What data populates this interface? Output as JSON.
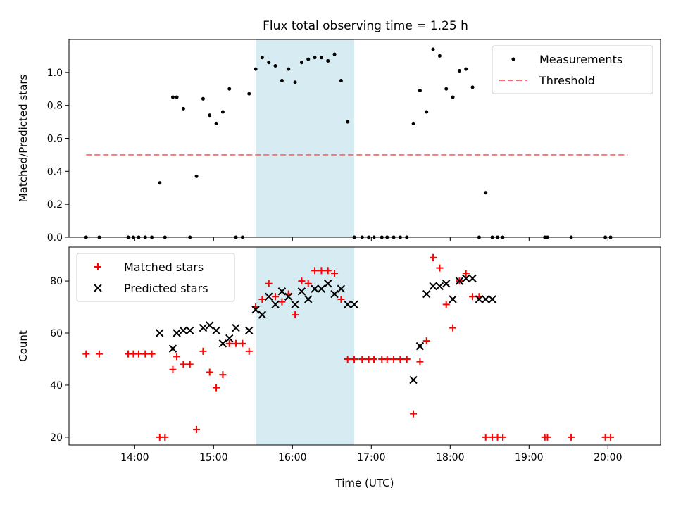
{
  "figure": {
    "title": "Flux total observing time = 1.25 h"
  },
  "colors": {
    "highlight_fill": "#add8e6",
    "threshold": "#ff6666",
    "measurement": "#000000",
    "matched": "#ff0000",
    "predicted": "#000000"
  },
  "chart_data": [
    {
      "type": "scatter",
      "ylabel": "Matched/Predicted stars",
      "xlim": [
        "13:10",
        "20:40"
      ],
      "ylim": [
        0,
        1.2
      ],
      "yticks": [
        0.0,
        0.2,
        0.4,
        0.6,
        0.8,
        1.0
      ],
      "yticklabels": [
        "0.0",
        "0.2",
        "0.4",
        "0.6",
        "0.8",
        "1.0"
      ],
      "grid": false,
      "legend_position": "top-right",
      "highlight_span": [
        "15:32",
        "16:47"
      ],
      "series": [
        {
          "name": "Measurements",
          "marker": "dot",
          "x": [
            "13:23",
            "13:33",
            "13:55",
            "13:59",
            "14:03",
            "14:08",
            "14:13",
            "14:19",
            "14:23",
            "14:29",
            "14:32",
            "14:37",
            "14:42",
            "14:47",
            "14:52",
            "14:57",
            "15:02",
            "15:07",
            "15:12",
            "15:17",
            "15:22",
            "15:27",
            "15:32",
            "15:37",
            "15:42",
            "15:47",
            "15:52",
            "15:57",
            "16:02",
            "16:07",
            "16:12",
            "16:17",
            "16:22",
            "16:27",
            "16:32",
            "16:37",
            "16:42",
            "16:47",
            "16:53",
            "16:58",
            "17:02",
            "17:08",
            "17:12",
            "17:17",
            "17:22",
            "17:27",
            "17:32",
            "17:37",
            "17:42",
            "17:47",
            "17:52",
            "17:57",
            "18:02",
            "18:07",
            "18:12",
            "18:17",
            "18:22",
            "18:27",
            "18:32",
            "18:36",
            "18:40",
            "19:12",
            "19:14",
            "19:32",
            "19:58",
            "20:02"
          ],
          "y": [
            0,
            0,
            0,
            0,
            0,
            0,
            0,
            0.33,
            0,
            0.85,
            0.85,
            0.78,
            0,
            0.37,
            0.84,
            0.74,
            0.69,
            0.76,
            0.9,
            0,
            0,
            0.87,
            1.02,
            1.09,
            1.06,
            1.04,
            0.95,
            1.02,
            0.94,
            1.06,
            1.08,
            1.09,
            1.09,
            1.07,
            1.11,
            0.95,
            0.7,
            0,
            0,
            0,
            0,
            0,
            0,
            0,
            0,
            0,
            0.69,
            0.89,
            0.76,
            1.14,
            1.1,
            0.9,
            0.85,
            1.01,
            1.02,
            0.91,
            0,
            0.27,
            0,
            0,
            0,
            0,
            0,
            0,
            0,
            0
          ]
        },
        {
          "name": "Threshold",
          "line_style": "dashed",
          "x": [
            "13:23",
            "20:15"
          ],
          "y": [
            0.5,
            0.5
          ]
        }
      ]
    },
    {
      "type": "scatter",
      "xlabel": "Time (UTC)",
      "ylabel": "Count",
      "xlim": [
        "13:10",
        "20:40"
      ],
      "ylim": [
        17,
        93
      ],
      "yticks": [
        20,
        40,
        60,
        80
      ],
      "yticklabels": [
        "20",
        "40",
        "60",
        "80"
      ],
      "xticks": [
        "14:00",
        "15:00",
        "16:00",
        "17:00",
        "18:00",
        "19:00",
        "20:00"
      ],
      "xticklabels": [
        "14:00",
        "15:00",
        "16:00",
        "17:00",
        "18:00",
        "19:00",
        "20:00"
      ],
      "grid": false,
      "legend_position": "top-left",
      "highlight_span": [
        "15:32",
        "16:47"
      ],
      "series": [
        {
          "name": "Matched stars",
          "marker": "plus",
          "x": [
            "13:23",
            "13:33",
            "13:55",
            "13:59",
            "14:03",
            "14:08",
            "14:13",
            "14:19",
            "14:23",
            "14:29",
            "14:32",
            "14:37",
            "14:42",
            "14:47",
            "14:52",
            "14:57",
            "15:02",
            "15:07",
            "15:12",
            "15:17",
            "15:22",
            "15:27",
            "15:32",
            "15:37",
            "15:42",
            "15:47",
            "15:52",
            "15:57",
            "16:02",
            "16:07",
            "16:12",
            "16:17",
            "16:22",
            "16:27",
            "16:32",
            "16:37",
            "16:42",
            "16:47",
            "16:53",
            "16:58",
            "17:02",
            "17:08",
            "17:12",
            "17:17",
            "17:22",
            "17:27",
            "17:32",
            "17:37",
            "17:42",
            "17:47",
            "17:52",
            "17:57",
            "18:02",
            "18:07",
            "18:12",
            "18:17",
            "18:22",
            "18:27",
            "18:32",
            "18:36",
            "18:40",
            "19:12",
            "19:14",
            "19:32",
            "19:58",
            "20:02"
          ],
          "y": [
            52,
            52,
            52,
            52,
            52,
            52,
            52,
            20,
            20,
            46,
            51,
            48,
            48,
            23,
            53,
            45,
            39,
            44,
            56,
            56,
            56,
            53,
            70,
            73,
            79,
            74,
            72,
            75,
            67,
            80,
            79,
            84,
            84,
            84,
            83,
            73,
            50,
            50,
            50,
            50,
            50,
            50,
            50,
            50,
            50,
            50,
            29,
            49,
            57,
            89,
            85,
            71,
            62,
            80,
            83,
            74,
            74,
            20,
            20,
            20,
            20,
            20,
            20,
            20,
            20,
            20
          ]
        },
        {
          "name": "Predicted stars",
          "marker": "x",
          "x": [
            "14:19",
            "14:29",
            "14:32",
            "14:37",
            "14:42",
            "14:52",
            "14:57",
            "15:02",
            "15:07",
            "15:12",
            "15:17",
            "15:27",
            "15:32",
            "15:37",
            "15:42",
            "15:47",
            "15:52",
            "15:57",
            "16:02",
            "16:07",
            "16:12",
            "16:17",
            "16:22",
            "16:27",
            "16:32",
            "16:37",
            "16:42",
            "16:47",
            "17:32",
            "17:37",
            "17:42",
            "17:47",
            "17:52",
            "17:57",
            "18:02",
            "18:07",
            "18:12",
            "18:17",
            "18:22",
            "18:27",
            "18:32"
          ],
          "y": [
            60,
            54,
            60,
            61,
            61,
            62,
            63,
            61,
            56,
            58,
            62,
            61,
            69,
            67,
            74,
            71,
            76,
            74,
            71,
            76,
            73,
            77,
            77,
            79,
            75,
            77,
            71,
            71,
            42,
            55,
            75,
            78,
            78,
            79,
            73,
            80,
            81,
            81,
            73,
            73,
            73
          ]
        }
      ]
    }
  ]
}
